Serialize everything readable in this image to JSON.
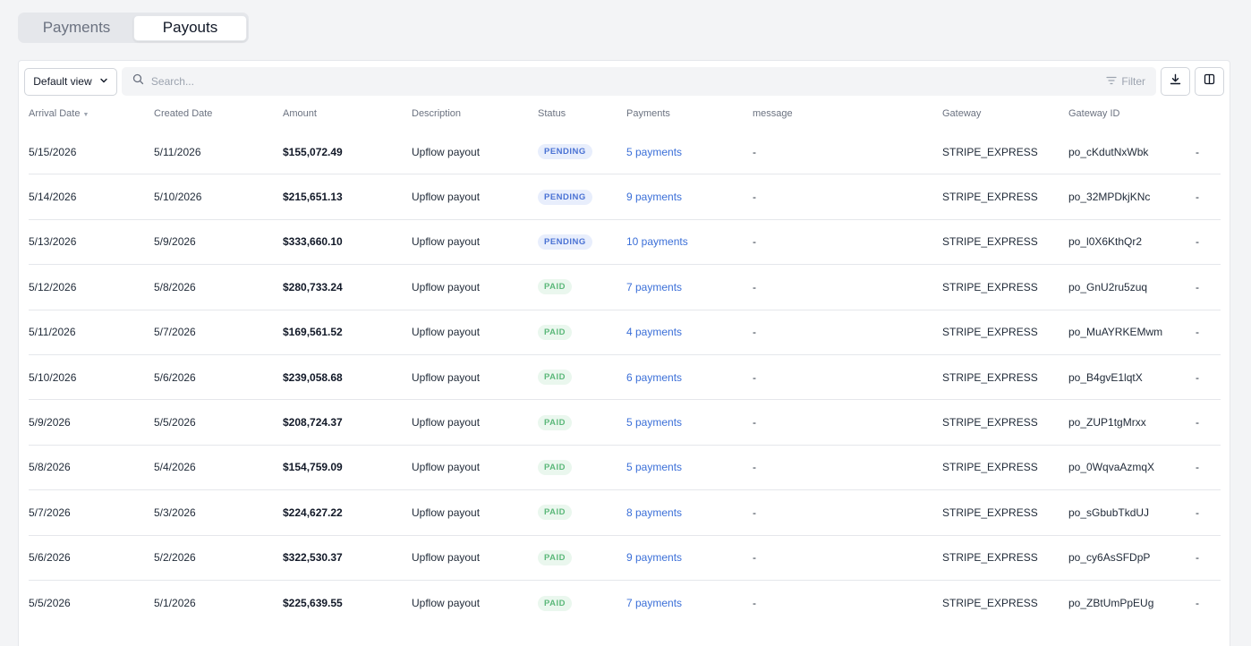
{
  "tabs": [
    {
      "label": "Payments",
      "active": false
    },
    {
      "label": "Payouts",
      "active": true
    }
  ],
  "toolbar": {
    "view_label": "Default view",
    "search_placeholder": "Search...",
    "filter_label": "Filter"
  },
  "columns": [
    "Arrival Date",
    "Created Date",
    "Amount",
    "Description",
    "Status",
    "Payments",
    "message",
    "Gateway",
    "Gateway ID",
    ""
  ],
  "sort_indicator": "▼",
  "rows": [
    {
      "arrival": "5/15/2026",
      "created": "5/11/2026",
      "amount": "$155,072.49",
      "description": "Upflow payout",
      "status": "PENDING",
      "payments": "5 payments",
      "message": "-",
      "gateway": "STRIPE_EXPRESS",
      "gateway_id": "po_cKdutNxWbk",
      "extra": "-"
    },
    {
      "arrival": "5/14/2026",
      "created": "5/10/2026",
      "amount": "$215,651.13",
      "description": "Upflow payout",
      "status": "PENDING",
      "payments": "9 payments",
      "message": "-",
      "gateway": "STRIPE_EXPRESS",
      "gateway_id": "po_32MPDkjKNc",
      "extra": "-"
    },
    {
      "arrival": "5/13/2026",
      "created": "5/9/2026",
      "amount": "$333,660.10",
      "description": "Upflow payout",
      "status": "PENDING",
      "payments": "10 payments",
      "message": "-",
      "gateway": "STRIPE_EXPRESS",
      "gateway_id": "po_l0X6KthQr2",
      "extra": "-"
    },
    {
      "arrival": "5/12/2026",
      "created": "5/8/2026",
      "amount": "$280,733.24",
      "description": "Upflow payout",
      "status": "PAID",
      "payments": "7 payments",
      "message": "-",
      "gateway": "STRIPE_EXPRESS",
      "gateway_id": "po_GnU2ru5zuq",
      "extra": "-"
    },
    {
      "arrival": "5/11/2026",
      "created": "5/7/2026",
      "amount": "$169,561.52",
      "description": "Upflow payout",
      "status": "PAID",
      "payments": "4 payments",
      "message": "-",
      "gateway": "STRIPE_EXPRESS",
      "gateway_id": "po_MuAYRKEMwm",
      "extra": "-"
    },
    {
      "arrival": "5/10/2026",
      "created": "5/6/2026",
      "amount": "$239,058.68",
      "description": "Upflow payout",
      "status": "PAID",
      "payments": "6 payments",
      "message": "-",
      "gateway": "STRIPE_EXPRESS",
      "gateway_id": "po_B4gvE1lqtX",
      "extra": "-"
    },
    {
      "arrival": "5/9/2026",
      "created": "5/5/2026",
      "amount": "$208,724.37",
      "description": "Upflow payout",
      "status": "PAID",
      "payments": "5 payments",
      "message": "-",
      "gateway": "STRIPE_EXPRESS",
      "gateway_id": "po_ZUP1tgMrxx",
      "extra": "-"
    },
    {
      "arrival": "5/8/2026",
      "created": "5/4/2026",
      "amount": "$154,759.09",
      "description": "Upflow payout",
      "status": "PAID",
      "payments": "5 payments",
      "message": "-",
      "gateway": "STRIPE_EXPRESS",
      "gateway_id": "po_0WqvaAzmqX",
      "extra": "-"
    },
    {
      "arrival": "5/7/2026",
      "created": "5/3/2026",
      "amount": "$224,627.22",
      "description": "Upflow payout",
      "status": "PAID",
      "payments": "8 payments",
      "message": "-",
      "gateway": "STRIPE_EXPRESS",
      "gateway_id": "po_sGbubTkdUJ",
      "extra": "-"
    },
    {
      "arrival": "5/6/2026",
      "created": "5/2/2026",
      "amount": "$322,530.37",
      "description": "Upflow payout",
      "status": "PAID",
      "payments": "9 payments",
      "message": "-",
      "gateway": "STRIPE_EXPRESS",
      "gateway_id": "po_cy6AsSFDpP",
      "extra": "-"
    },
    {
      "arrival": "5/5/2026",
      "created": "5/1/2026",
      "amount": "$225,639.55",
      "description": "Upflow payout",
      "status": "PAID",
      "payments": "7 payments",
      "message": "-",
      "gateway": "STRIPE_EXPRESS",
      "gateway_id": "po_ZBtUmPpEUg",
      "extra": "-"
    }
  ],
  "colors": {
    "link": "#3b6fd8",
    "pending_bg": "#e8eefc",
    "pending_text": "#4a72d4",
    "paid_bg": "#eaf7ee",
    "paid_text": "#5cb87a"
  },
  "icons": {
    "chevron": "chevron-down-icon",
    "search": "search-icon",
    "filter": "filter-icon",
    "download": "download-icon",
    "columns": "columns-icon"
  }
}
